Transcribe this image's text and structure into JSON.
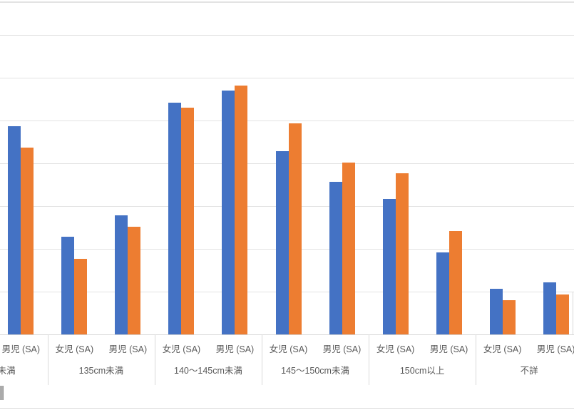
{
  "chart_data": {
    "type": "bar",
    "title": "",
    "xlabel": "",
    "ylabel": "",
    "y_axis_labels_visible": false,
    "legend_visible": false,
    "gridlines": "horizontal",
    "gridline_interval": 5,
    "ylim": [
      0,
      38.8
    ],
    "subcategories": [
      "女児 (SA)",
      "男児 (SA)"
    ],
    "categories": [
      "cm未満",
      "135cm未満",
      "140〜145cm未満",
      "145〜150cm未満",
      "150cm以上",
      "不詳"
    ],
    "categories_note_first_is_cropped": true,
    "series": [
      {
        "name": "blue-series",
        "color": "#4472C4",
        "values": [
          [
            null,
            24.3
          ],
          [
            11.4,
            13.9
          ],
          [
            27.1,
            28.5
          ],
          [
            21.4,
            17.8
          ],
          [
            15.8,
            9.6
          ],
          [
            5.3,
            6.1
          ]
        ]
      },
      {
        "name": "orange-series",
        "color": "#ED7D31",
        "values": [
          [
            null,
            21.8
          ],
          [
            8.8,
            12.6
          ],
          [
            26.5,
            29.1
          ],
          [
            24.7,
            20.1
          ],
          [
            18.8,
            12.1
          ],
          [
            4.0,
            4.7
          ]
        ]
      }
    ]
  },
  "colors": {
    "axis_text": "#595959",
    "gridline": "#e2e2e2",
    "axis_line": "#d6d6d6",
    "divider": "#d9d9d9",
    "top_border": "#e3e3e3",
    "bottom_border": "#d9d9d9"
  }
}
